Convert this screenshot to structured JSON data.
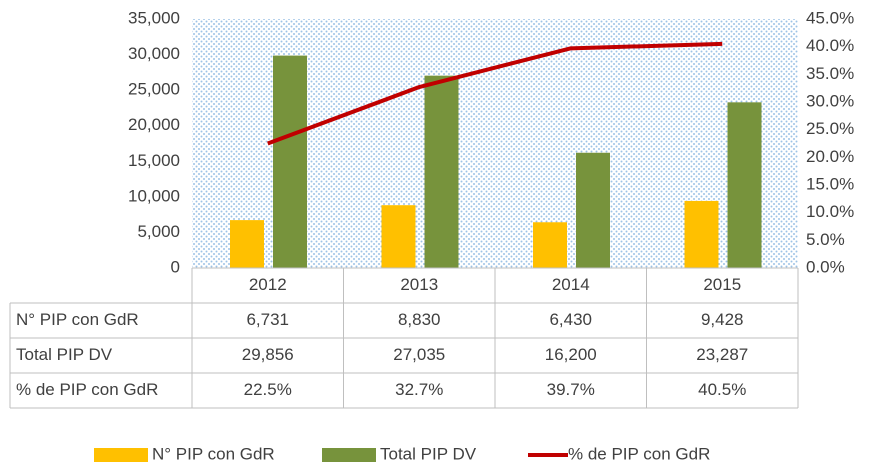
{
  "chart_data": {
    "type": "bar_line_table",
    "categories": [
      "2012",
      "2013",
      "2014",
      "2015"
    ],
    "series": [
      {
        "name": "N° PIP con GdR",
        "color": "#FFC000",
        "type": "bar",
        "values": [
          6731,
          8830,
          6430,
          9428
        ],
        "value_labels": [
          "6,731",
          "8,830",
          "6,430",
          "9,428"
        ]
      },
      {
        "name": "Total PIP DV",
        "color": "#77933C",
        "type": "bar",
        "values": [
          29856,
          27035,
          16200,
          23287
        ],
        "value_labels": [
          "29,856",
          "27,035",
          "16,200",
          "23,287"
        ]
      },
      {
        "name": "% de PIP con GdR",
        "color": "#C00000",
        "type": "line",
        "axis": "y2",
        "values": [
          22.5,
          32.7,
          39.7,
          40.5
        ],
        "value_labels": [
          "22.5%",
          "32.7%",
          "39.7%",
          "40.5%"
        ]
      }
    ],
    "ylim": [
      0,
      35000
    ],
    "yticks": [
      0,
      {
        "value": 5000,
        "label": "5,000"
      },
      {
        "value": 10000,
        "label": "10,000"
      },
      {
        "value": 15000,
        "label": "15,000"
      },
      {
        "value": 20000,
        "label": "20,000"
      },
      {
        "value": 25000,
        "label": "25,000"
      },
      {
        "value": 30000,
        "label": "30,000"
      },
      {
        "value": 35000,
        "label": "35,000"
      }
    ],
    "y2lim": [
      0,
      45
    ],
    "y2ticks": [
      {
        "value": 0,
        "label": "0.0%"
      },
      {
        "value": 5,
        "label": "5.0%"
      },
      {
        "value": 10,
        "label": "10.0%"
      },
      {
        "value": 15,
        "label": "15.0%"
      },
      {
        "value": 20,
        "label": "20.0%"
      },
      {
        "value": 25,
        "label": "25.0%"
      },
      {
        "value": 30,
        "label": "30.0%"
      },
      {
        "value": 35,
        "label": "35.0%"
      },
      {
        "value": 40,
        "label": "40.0%"
      },
      {
        "value": 45,
        "label": "45.0%"
      }
    ],
    "legend": "bottom"
  }
}
